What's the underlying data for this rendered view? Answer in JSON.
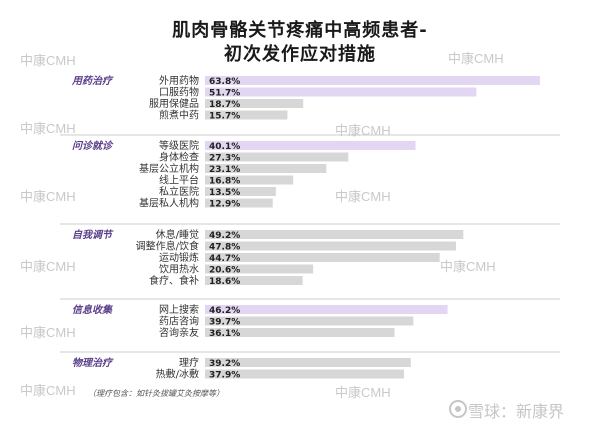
{
  "title_line1": "肌肉骨骼关节疼痛中高频患者-",
  "title_line2": "初次发作应对措施",
  "watermark_text": "中康CMH",
  "footnote": "（理疗包含：如针灸拔罐艾灸按摩等）",
  "source_label": "雪球：新康界",
  "colors": {
    "highlight": "#e3d6f2",
    "normal": "#d7d7d7",
    "category": "#5a3f8a",
    "divider": "#bdbdbd"
  },
  "chart_data": {
    "type": "bar",
    "orientation": "horizontal",
    "xlim": [
      0,
      80
    ],
    "value_format": "percent",
    "groups": [
      {
        "name": "用药治疗",
        "items": [
          {
            "label": "外用药物",
            "value": 63.8,
            "highlight": true
          },
          {
            "label": "口服药物",
            "value": 51.7,
            "highlight": true
          },
          {
            "label": "服用保健品",
            "value": 18.7,
            "highlight": false
          },
          {
            "label": "煎煮中药",
            "value": 15.7,
            "highlight": false
          }
        ]
      },
      {
        "name": "问诊就诊",
        "items": [
          {
            "label": "等级医院",
            "value": 40.1,
            "highlight": true
          },
          {
            "label": "身体检查",
            "value": 27.3,
            "highlight": false
          },
          {
            "label": "基层公立机构",
            "value": 23.1,
            "highlight": false
          },
          {
            "label": "线上平台",
            "value": 16.8,
            "highlight": false
          },
          {
            "label": "私立医院",
            "value": 13.5,
            "highlight": false
          },
          {
            "label": "基层私人机构",
            "value": 12.9,
            "highlight": false
          }
        ]
      },
      {
        "name": "自我调节",
        "items": [
          {
            "label": "休息/睡觉",
            "value": 49.2,
            "highlight": false
          },
          {
            "label": "调整作息/饮食",
            "value": 47.8,
            "highlight": false
          },
          {
            "label": "运动锻炼",
            "value": 44.7,
            "highlight": false
          },
          {
            "label": "饮用热水",
            "value": 20.6,
            "highlight": false
          },
          {
            "label": "食疗、食补",
            "value": 18.6,
            "highlight": false
          }
        ]
      },
      {
        "name": "信息收集",
        "items": [
          {
            "label": "网上搜索",
            "value": 46.2,
            "highlight": true
          },
          {
            "label": "药店咨询",
            "value": 39.7,
            "highlight": false
          },
          {
            "label": "咨询亲友",
            "value": 36.1,
            "highlight": false
          }
        ]
      },
      {
        "name": "物理治疗",
        "items": [
          {
            "label": "理疗",
            "value": 39.2,
            "highlight": false
          },
          {
            "label": "热敷/冰敷",
            "value": 37.9,
            "highlight": false
          }
        ]
      }
    ]
  }
}
